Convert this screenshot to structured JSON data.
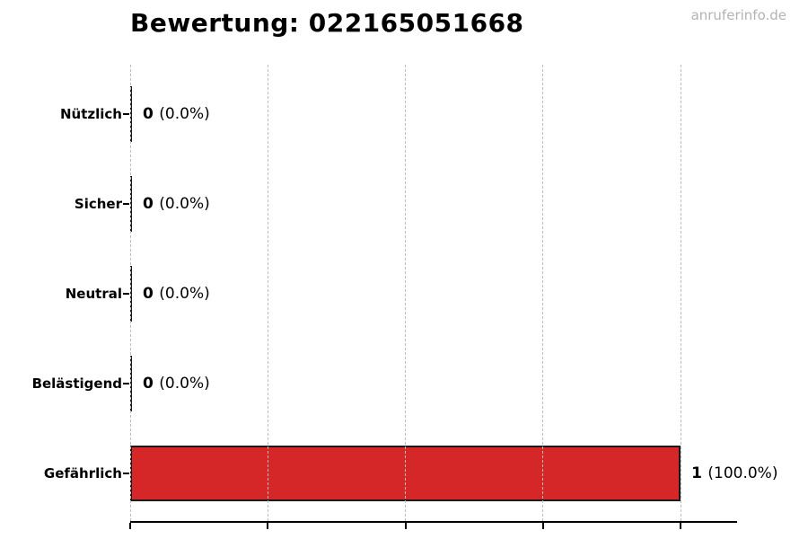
{
  "page": {
    "title": "Bewertung: 022165051668",
    "watermark": "anruferinfo.de"
  },
  "chart_data": {
    "type": "bar",
    "orientation": "horizontal",
    "title": "Bewertung: 022165051668",
    "watermark": "anruferinfo.de",
    "categories": [
      "Nützlich",
      "Sicher",
      "Neutral",
      "Belästigend",
      "Gefährlich"
    ],
    "values": [
      0,
      0,
      0,
      0,
      1
    ],
    "value_labels": [
      {
        "count": "0",
        "percent": "(0.0%)"
      },
      {
        "count": "0",
        "percent": "(0.0%)"
      },
      {
        "count": "0",
        "percent": "(0.0%)"
      },
      {
        "count": "0",
        "percent": "(0.0%)"
      },
      {
        "count": "1",
        "percent": "(100.0%)"
      }
    ],
    "xlabel": "",
    "ylabel": "",
    "xlim": [
      0,
      1.101
    ],
    "x_ticks": [
      0,
      0.25,
      0.5,
      0.75,
      1.0
    ],
    "x_tick_labels_visible": false,
    "grid": true,
    "grid_style": "dashed",
    "legend": false,
    "colors": {
      "bar": "#d62728",
      "bar_border": "#1a1a1a",
      "zero_bar": "#1a1a1a",
      "grid": "#bdbdbd",
      "axis": "#000000",
      "text": "#000000",
      "watermark": "#b3b3b3",
      "background": "#ffffff"
    }
  }
}
